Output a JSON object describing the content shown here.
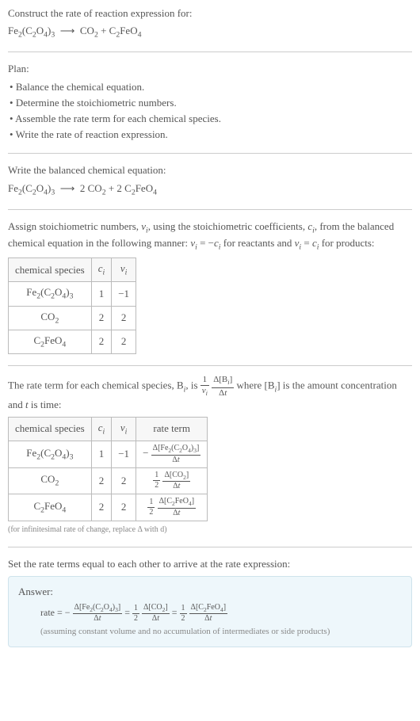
{
  "colors": {
    "bg": "#ffffff",
    "text": "#333333",
    "muted": "#555555",
    "border": "#cccccc",
    "cellborder": "#bbbbbb",
    "footnote": "#888888",
    "answer_bg": "#eef7fb",
    "answer_border": "#cfe3ec"
  },
  "header": {
    "prompt": "Construct the rate of reaction expression for:",
    "equation_html": "Fe<sub>2</sub>(C<sub>2</sub>O<sub>4</sub>)<sub>3</sub> &nbsp;⟶&nbsp; CO<sub>2</sub> + C<sub>2</sub>FeO<sub>4</sub>"
  },
  "plan": {
    "title": "Plan:",
    "items": [
      "Balance the chemical equation.",
      "Determine the stoichiometric numbers.",
      "Assemble the rate term for each chemical species.",
      "Write the rate of reaction expression."
    ]
  },
  "balanced": {
    "title": "Write the balanced chemical equation:",
    "equation_html": "Fe<sub>2</sub>(C<sub>2</sub>O<sub>4</sub>)<sub>3</sub> &nbsp;⟶&nbsp; 2 CO<sub>2</sub> + 2 C<sub>2</sub>FeO<sub>4</sub>"
  },
  "assign": {
    "text_html": "Assign stoichiometric numbers, <i>ν<sub>i</sub></i>, using the stoichiometric coefficients, <i>c<sub>i</sub></i>, from the balanced chemical equation in the following manner: <i>ν<sub>i</sub></i> = −<i>c<sub>i</sub></i> for reactants and <i>ν<sub>i</sub></i> = <i>c<sub>i</sub></i> for products:"
  },
  "table1": {
    "columns_html": [
      "chemical species",
      "<i>c<sub>i</sub></i>",
      "<i>ν<sub>i</sub></i>"
    ],
    "rows_html": [
      [
        "Fe<sub>2</sub>(C<sub>2</sub>O<sub>4</sub>)<sub>3</sub>",
        "1",
        "−1"
      ],
      [
        "CO<sub>2</sub>",
        "2",
        "2"
      ],
      [
        "C<sub>2</sub>FeO<sub>4</sub>",
        "2",
        "2"
      ]
    ]
  },
  "rateterm": {
    "text_html": "The rate term for each chemical species, B<sub><i>i</i></sub>, is <span class=\"frac\"><span class=\"num\">1</span><span class=\"den\"><i>ν<sub>i</sub></i></span></span> <span class=\"frac\"><span class=\"num\">Δ[B<sub><i>i</i></sub>]</span><span class=\"den\">Δ<i>t</i></span></span> where [B<sub><i>i</i></sub>] is the amount concentration and <i>t</i> is time:"
  },
  "table2": {
    "columns_html": [
      "chemical species",
      "<i>c<sub>i</sub></i>",
      "<i>ν<sub>i</sub></i>",
      "rate term"
    ],
    "rows_html": [
      [
        "Fe<sub>2</sub>(C<sub>2</sub>O<sub>4</sub>)<sub>3</sub>",
        "1",
        "−1",
        "− <span class=\"frac tiny\"><span class=\"num\">Δ[Fe<sub>2</sub>(C<sub>2</sub>O<sub>4</sub>)<sub>3</sub>]</span><span class=\"den\">Δ<i>t</i></span></span>"
      ],
      [
        "CO<sub>2</sub>",
        "2",
        "2",
        "<span class=\"frac tiny\"><span class=\"num\">1</span><span class=\"den\">2</span></span> <span class=\"frac tiny\"><span class=\"num\">Δ[CO<sub>2</sub>]</span><span class=\"den\">Δ<i>t</i></span></span>"
      ],
      [
        "C<sub>2</sub>FeO<sub>4</sub>",
        "2",
        "2",
        "<span class=\"frac tiny\"><span class=\"num\">1</span><span class=\"den\">2</span></span> <span class=\"frac tiny\"><span class=\"num\">Δ[C<sub>2</sub>FeO<sub>4</sub>]</span><span class=\"den\">Δ<i>t</i></span></span>"
      ]
    ],
    "footnote": "(for infinitesimal rate of change, replace Δ with d)"
  },
  "setequal": {
    "text": "Set the rate terms equal to each other to arrive at the rate expression:"
  },
  "answer": {
    "label": "Answer:",
    "equation_html": "rate = − <span class=\"frac tiny\"><span class=\"num\">Δ[Fe<sub>2</sub>(C<sub>2</sub>O<sub>4</sub>)<sub>3</sub>]</span><span class=\"den\">Δ<i>t</i></span></span> = <span class=\"frac tiny\"><span class=\"num\">1</span><span class=\"den\">2</span></span> <span class=\"frac tiny\"><span class=\"num\">Δ[CO<sub>2</sub>]</span><span class=\"den\">Δ<i>t</i></span></span> = <span class=\"frac tiny\"><span class=\"num\">1</span><span class=\"den\">2</span></span> <span class=\"frac tiny\"><span class=\"num\">Δ[C<sub>2</sub>FeO<sub>4</sub>]</span><span class=\"den\">Δ<i>t</i></span></span>",
    "note": "(assuming constant volume and no accumulation of intermediates or side products)"
  }
}
